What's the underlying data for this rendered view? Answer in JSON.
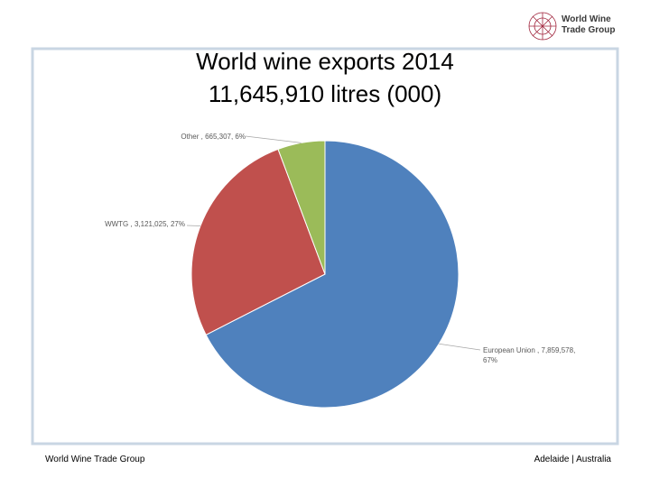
{
  "logo": [
    "World Wine",
    "Trade Group"
  ],
  "footer_left": "World Wine Trade Group",
  "footer_right": "Adelaide | Australia",
  "chart_data": {
    "type": "pie",
    "title": "World wine exports 2014",
    "subtitle": "11,645,910 litres (000)",
    "values": [
      7859578,
      3121025,
      665307
    ],
    "value_labels": [
      "European Union , 7,859,578, 67%",
      "WWTG , 3,121,025, 27%",
      "Other , 665,307, 6%"
    ],
    "colors": [
      "#4f81bd",
      "#c0504d",
      "#9bbb59"
    ]
  }
}
